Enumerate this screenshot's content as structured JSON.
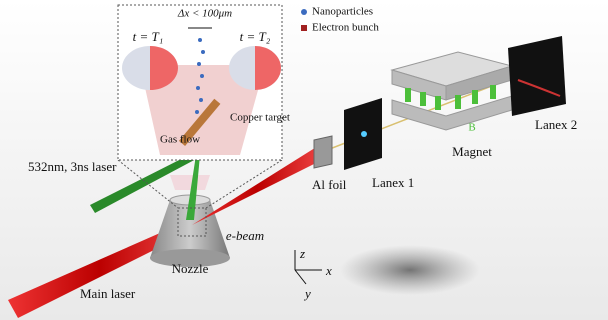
{
  "inset": {
    "delta_x": "Δx < 100μm",
    "time_left": "t = T₁",
    "time_right": "t = T₂",
    "copper_target": "Copper target",
    "gas_flow": "Gas flow"
  },
  "legend": {
    "nanoparticles": "Nanoparticles",
    "electron_bunch": "Electron bunch"
  },
  "labels": {
    "green_laser": "532nm, 3ns laser",
    "main_laser": "Main laser",
    "nozzle": "Nozzle",
    "e_beam": "e-beam",
    "al_foil": "Al foil",
    "lanex1": "Lanex 1",
    "magnet": "Magnet",
    "field": "B",
    "lanex2": "Lanex 2"
  },
  "axes": {
    "z": "z",
    "x": "x",
    "y": "y"
  }
}
